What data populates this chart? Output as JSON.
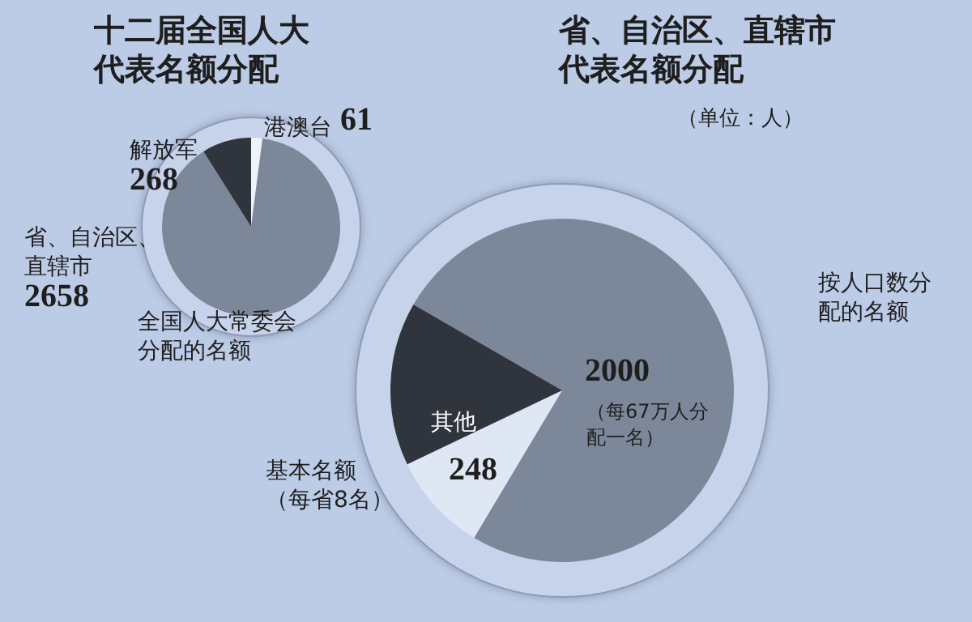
{
  "chart_data": [
    {
      "type": "pie",
      "title": "十二届全国人大代表名额分配",
      "categories": [
        "港澳台",
        "省、自治区、直辖市",
        "解放军"
      ],
      "values": [
        61,
        2658,
        268
      ],
      "colors": [
        "#eef2f9",
        "#7c879a",
        "#30343d"
      ],
      "data_labels": true,
      "legend": false
    },
    {
      "type": "pie",
      "title": "省、自治区、直辖市代表名额分配",
      "subtitle": "（单位：人）",
      "categories": [
        "按人口数分配的名额",
        "基本名额（每省8名）",
        "其他"
      ],
      "values": [
        2000,
        248,
        410
      ],
      "value_labels": [
        "2000",
        "248",
        null
      ],
      "colors": [
        "#7c879a",
        "#dfe7f4",
        "#30343d"
      ],
      "annotations": [
        {
          "text": "（每67万人分配一名）",
          "x": "按人口数分配的名额"
        },
        {
          "text": "全国人大常委会分配的名额",
          "x": "其他"
        }
      ],
      "legend": false
    }
  ]
}
